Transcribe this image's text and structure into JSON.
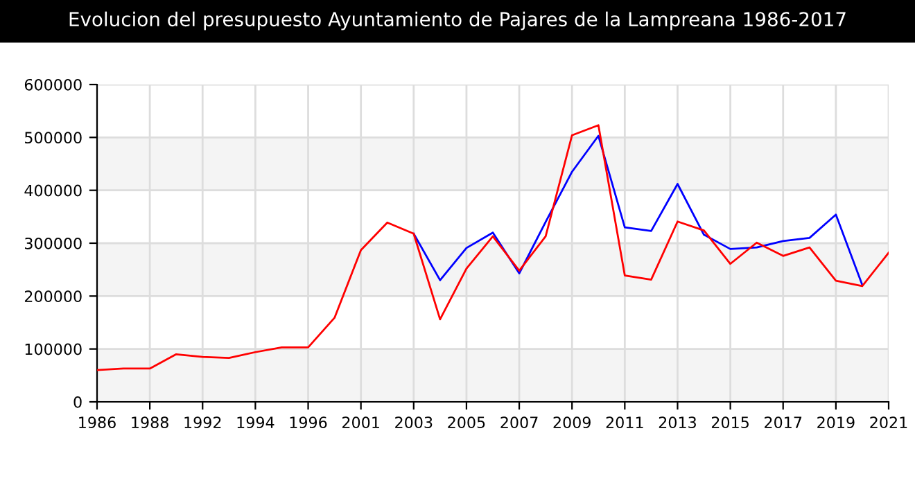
{
  "chart_data": {
    "type": "line",
    "title": "Evolucion del presupuesto Ayuntamiento de Pajares de la Lampreana 1986-2017",
    "categories": [
      "1986",
      null,
      "1988",
      null,
      "1992",
      null,
      "1994",
      null,
      "1996",
      null,
      "2001",
      null,
      "2003",
      null,
      "2005",
      null,
      "2007",
      null,
      "2009",
      null,
      "2011",
      null,
      "2013",
      null,
      "2015",
      null,
      "2017",
      null,
      "2019",
      null,
      "2021"
    ],
    "series": [
      {
        "color": "#0000ff",
        "values": [
          null,
          null,
          null,
          null,
          null,
          null,
          null,
          null,
          null,
          null,
          null,
          null,
          318000,
          230000,
          291000,
          320000,
          243000,
          340000,
          435000,
          503000,
          330000,
          323000,
          412000,
          316000,
          289000,
          292000,
          304000,
          310000,
          354000,
          221000,
          null
        ]
      },
      {
        "color": "#ff0000",
        "values": [
          60000,
          63000,
          63000,
          90000,
          85000,
          83000,
          94000,
          103000,
          103000,
          159000,
          287000,
          339000,
          318000,
          156000,
          252000,
          313000,
          248000,
          313000,
          504000,
          523000,
          239000,
          231000,
          341000,
          324000,
          261000,
          301000,
          276000,
          292000,
          229000,
          219000,
          282000
        ]
      }
    ],
    "ylim": [
      0,
      600000
    ],
    "yticks": [
      0,
      100000,
      200000,
      300000,
      400000,
      500000,
      600000
    ],
    "grid": true,
    "legend": false
  }
}
